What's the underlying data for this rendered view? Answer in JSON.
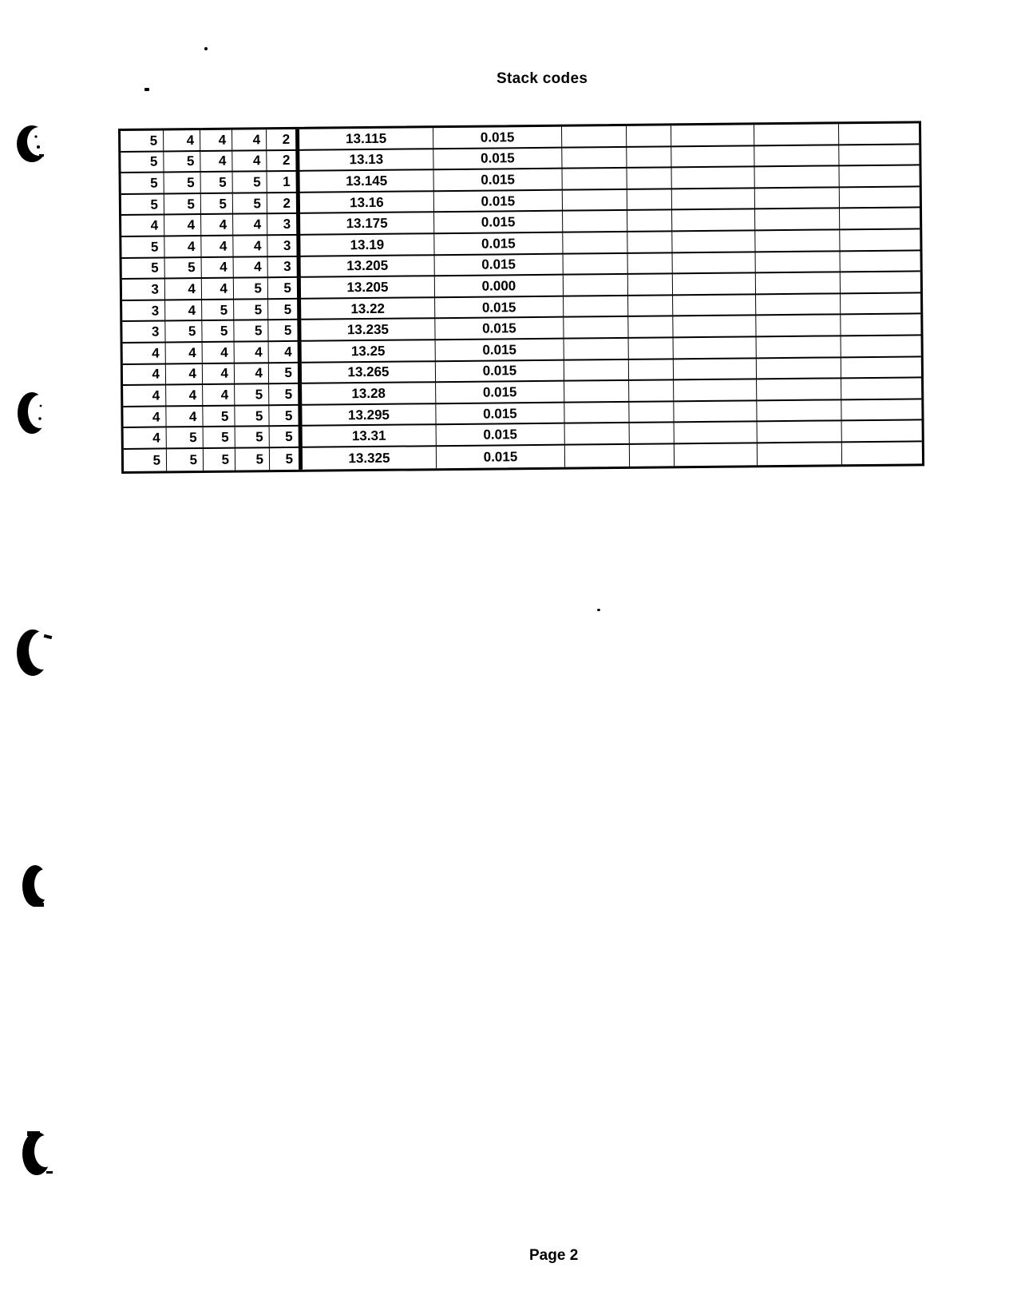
{
  "page": {
    "title": "Stack codes",
    "footer": "Page 2"
  },
  "table": {
    "code_column_count": 5,
    "empty_column_count": 5,
    "rows": [
      {
        "codes": [
          "5",
          "4",
          "4",
          "4",
          "2"
        ],
        "value": "13.115",
        "delta": "0.015"
      },
      {
        "codes": [
          "5",
          "5",
          "4",
          "4",
          "2"
        ],
        "value": "13.13",
        "delta": "0.015"
      },
      {
        "codes": [
          "5",
          "5",
          "5",
          "5",
          "1"
        ],
        "value": "13.145",
        "delta": "0.015"
      },
      {
        "codes": [
          "5",
          "5",
          "5",
          "5",
          "2"
        ],
        "value": "13.16",
        "delta": "0.015"
      },
      {
        "codes": [
          "4",
          "4",
          "4",
          "4",
          "3"
        ],
        "value": "13.175",
        "delta": "0.015"
      },
      {
        "codes": [
          "5",
          "4",
          "4",
          "4",
          "3"
        ],
        "value": "13.19",
        "delta": "0.015"
      },
      {
        "codes": [
          "5",
          "5",
          "4",
          "4",
          "3"
        ],
        "value": "13.205",
        "delta": "0.015"
      },
      {
        "codes": [
          "3",
          "4",
          "4",
          "5",
          "5"
        ],
        "value": "13.205",
        "delta": "0.000"
      },
      {
        "codes": [
          "3",
          "4",
          "5",
          "5",
          "5"
        ],
        "value": "13.22",
        "delta": "0.015"
      },
      {
        "codes": [
          "3",
          "5",
          "5",
          "5",
          "5"
        ],
        "value": "13.235",
        "delta": "0.015"
      },
      {
        "codes": [
          "4",
          "4",
          "4",
          "4",
          "4"
        ],
        "value": "13.25",
        "delta": "0.015"
      },
      {
        "codes": [
          "4",
          "4",
          "4",
          "4",
          "5"
        ],
        "value": "13.265",
        "delta": "0.015"
      },
      {
        "codes": [
          "4",
          "4",
          "4",
          "5",
          "5"
        ],
        "value": "13.28",
        "delta": "0.015"
      },
      {
        "codes": [
          "4",
          "4",
          "5",
          "5",
          "5"
        ],
        "value": "13.295",
        "delta": "0.015"
      },
      {
        "codes": [
          "4",
          "5",
          "5",
          "5",
          "5"
        ],
        "value": "13.31",
        "delta": "0.015"
      },
      {
        "codes": [
          "5",
          "5",
          "5",
          "5",
          "5"
        ],
        "value": "13.325",
        "delta": "0.015"
      }
    ]
  },
  "icons": {
    "hole_punch_mark": "black crescent scan artifact",
    "ink_speck": "small black dot"
  },
  "colors": {
    "ink": "#000000",
    "paper": "#ffffff"
  }
}
